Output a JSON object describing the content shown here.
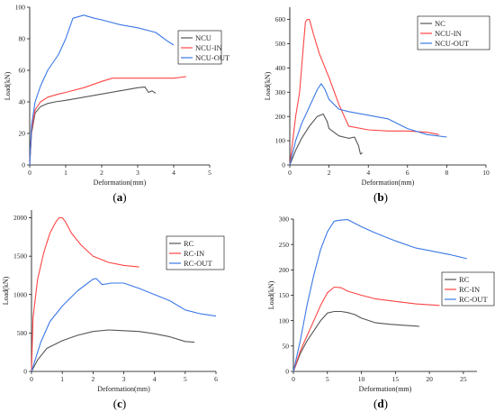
{
  "chart_data": [
    {
      "type": "line",
      "panel_label": "(a)",
      "xlabel": "Deformation(mm)",
      "ylabel": "Load(kN)",
      "xlim": [
        0,
        5
      ],
      "ylim": [
        0,
        100
      ],
      "xticks": [
        0,
        1,
        2,
        3,
        4,
        5
      ],
      "yticks": [
        0,
        20,
        40,
        60,
        80,
        100
      ],
      "legend_position": "top-right",
      "series": [
        {
          "name": "NCU",
          "color": "#555555",
          "x": [
            0,
            0.05,
            0.15,
            0.3,
            0.5,
            0.7,
            1.0,
            1.5,
            2.0,
            2.5,
            3.0,
            3.2,
            3.3,
            3.4,
            3.5
          ],
          "y": [
            0,
            20,
            33,
            37,
            39,
            40,
            41,
            43,
            45,
            47,
            49,
            49.5,
            46,
            47,
            45.5
          ]
        },
        {
          "name": "NCU-IN",
          "color": "#ff4444",
          "x": [
            0,
            0.05,
            0.15,
            0.3,
            0.5,
            0.8,
            1.0,
            1.5,
            2.0,
            2.3,
            2.5,
            3.0,
            3.5,
            4.0,
            4.35
          ],
          "y": [
            0,
            22,
            35,
            40,
            43,
            45,
            46,
            49,
            53,
            55,
            55,
            55,
            55,
            55,
            56
          ]
        },
        {
          "name": "NCU-OUT",
          "color": "#3a78e6",
          "x": [
            0,
            0.05,
            0.15,
            0.3,
            0.5,
            0.8,
            1.0,
            1.2,
            1.5,
            1.8,
            2.0,
            2.5,
            3.0,
            3.5,
            3.8,
            4.0
          ],
          "y": [
            0,
            25,
            40,
            50,
            60,
            70,
            80,
            93,
            95,
            93,
            92,
            89,
            87,
            84,
            79,
            76
          ]
        }
      ]
    },
    {
      "type": "line",
      "panel_label": "(b)",
      "xlabel": "Deformation(mm)",
      "ylabel": "Load(kN)",
      "xlim": [
        0,
        10
      ],
      "ylim": [
        0,
        650
      ],
      "xticks": [
        0,
        2,
        4,
        6,
        8,
        10
      ],
      "yticks": [
        0,
        100,
        200,
        300,
        400,
        500,
        600
      ],
      "legend_position": "top-right",
      "series": [
        {
          "name": "NC",
          "color": "#555555",
          "x": [
            0,
            0.3,
            0.6,
            1.0,
            1.4,
            1.7,
            1.9,
            2.0,
            2.5,
            3.0,
            3.3,
            3.5,
            3.6,
            3.7
          ],
          "y": [
            0,
            60,
            110,
            160,
            200,
            210,
            180,
            150,
            120,
            110,
            115,
            80,
            45,
            50
          ]
        },
        {
          "name": "NCU-IN",
          "color": "#ff4444",
          "x": [
            0,
            0.3,
            0.5,
            0.7,
            0.8,
            0.9,
            1.0,
            1.2,
            1.5,
            2.0,
            2.5,
            3.0,
            4.0,
            5.0,
            6.0,
            7.0,
            7.6
          ],
          "y": [
            0,
            200,
            300,
            500,
            590,
            600,
            600,
            540,
            460,
            360,
            250,
            160,
            145,
            140,
            140,
            135,
            125
          ]
        },
        {
          "name": "NCU-OUT",
          "color": "#3a78e6",
          "x": [
            0,
            0.3,
            0.6,
            1.0,
            1.4,
            1.6,
            1.8,
            2.0,
            2.5,
            3.0,
            4.0,
            5.0,
            5.5,
            6.0,
            7.0,
            8.0
          ],
          "y": [
            0,
            100,
            170,
            240,
            310,
            335,
            310,
            270,
            230,
            220,
            205,
            190,
            170,
            150,
            125,
            115
          ]
        }
      ]
    },
    {
      "type": "line",
      "panel_label": "(c)",
      "xlabel": "Deformation(mm)",
      "ylabel": "Load(kN)",
      "xlim": [
        0,
        6
      ],
      "ylim": [
        0,
        2100
      ],
      "xticks": [
        0,
        1,
        2,
        3,
        4,
        5,
        6
      ],
      "yticks": [
        0,
        500,
        1000,
        1500,
        2000
      ],
      "legend_position": "top-right",
      "series": [
        {
          "name": "RC",
          "color": "#555555",
          "x": [
            0,
            0.2,
            0.5,
            1.0,
            1.5,
            2.0,
            2.5,
            3.0,
            3.5,
            4.0,
            4.5,
            5.0,
            5.3
          ],
          "y": [
            0,
            150,
            300,
            400,
            470,
            520,
            540,
            530,
            520,
            490,
            450,
            390,
            380
          ]
        },
        {
          "name": "RC-IN",
          "color": "#ff4444",
          "x": [
            0,
            0.05,
            0.2,
            0.4,
            0.6,
            0.8,
            0.9,
            1.0,
            1.1,
            1.3,
            1.6,
            2.0,
            2.5,
            3.0,
            3.5
          ],
          "y": [
            0,
            700,
            1200,
            1550,
            1800,
            1950,
            2000,
            2000,
            1950,
            1800,
            1650,
            1500,
            1420,
            1380,
            1360
          ]
        },
        {
          "name": "RC-OUT",
          "color": "#3a78e6",
          "x": [
            0,
            0.3,
            0.6,
            1.0,
            1.5,
            2.0,
            2.1,
            2.3,
            2.6,
            3.0,
            3.5,
            4.0,
            4.5,
            5.0,
            5.5,
            6.0
          ],
          "y": [
            0,
            380,
            650,
            850,
            1050,
            1200,
            1210,
            1130,
            1150,
            1150,
            1080,
            1000,
            920,
            800,
            750,
            720
          ]
        }
      ]
    },
    {
      "type": "line",
      "panel_label": "(d)",
      "xlabel": "Deformation(mm)",
      "ylabel": "Load(kN)",
      "xlim": [
        0,
        27
      ],
      "ylim": [
        0,
        300
      ],
      "xticks": [
        0,
        5,
        10,
        15,
        20,
        25
      ],
      "yticks": [
        0,
        50,
        100,
        150,
        200,
        250,
        300
      ],
      "legend_position": "right",
      "series": [
        {
          "name": "RC",
          "color": "#555555",
          "x": [
            0,
            1,
            2,
            3,
            4,
            5,
            6,
            7,
            8,
            9,
            10,
            12,
            14,
            16,
            18.5
          ],
          "y": [
            0,
            35,
            60,
            80,
            100,
            115,
            118,
            118,
            116,
            112,
            105,
            96,
            93,
            91,
            89
          ]
        },
        {
          "name": "RC-IN",
          "color": "#ff4444",
          "x": [
            0,
            1,
            2,
            3,
            4,
            5,
            6,
            7,
            8,
            10,
            12,
            15,
            18,
            21.5
          ],
          "y": [
            0,
            40,
            70,
            100,
            130,
            155,
            166,
            165,
            158,
            150,
            143,
            138,
            133,
            130
          ]
        },
        {
          "name": "RC-OUT",
          "color": "#3a78e6",
          "x": [
            0,
            1,
            2,
            3,
            4,
            5,
            6,
            7,
            8,
            10,
            12,
            15,
            18,
            20,
            23,
            25.5
          ],
          "y": [
            0,
            60,
            130,
            190,
            240,
            275,
            296,
            298,
            299,
            285,
            273,
            257,
            243,
            238,
            230,
            222
          ]
        }
      ]
    }
  ]
}
